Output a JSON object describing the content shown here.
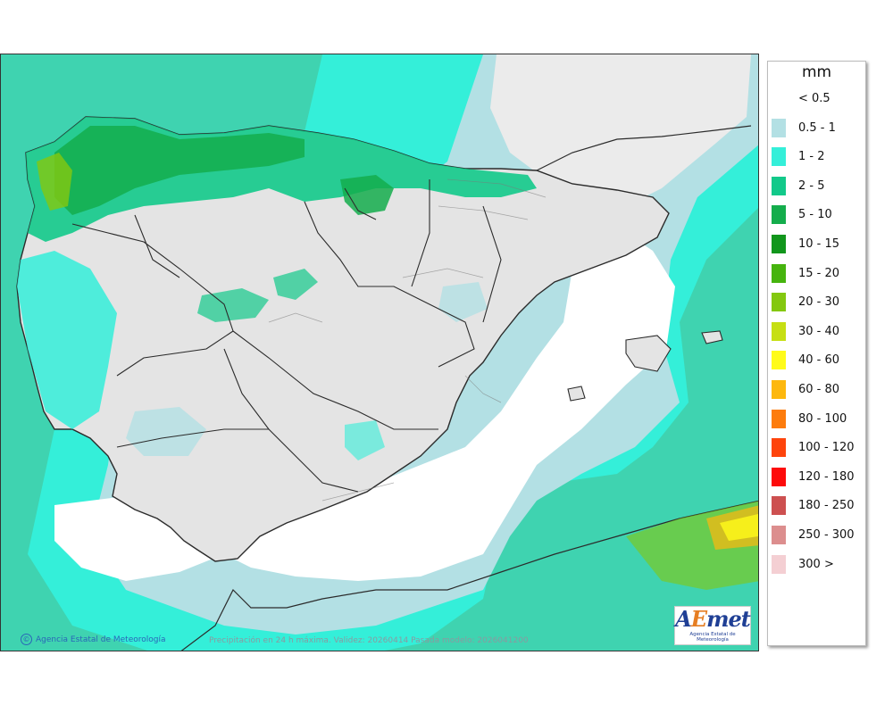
{
  "map": {
    "footer_text": "Precipitación en 24 h máxima. Validez: 20260414 Pasada modelo: 2026041200",
    "credit": "Agencia Estatal de Meteorología",
    "logo": {
      "wordmark_a": "A",
      "wordmark_e": "E",
      "wordmark_rest": "met",
      "subtitle": "Agencia Estatal de Meteorología"
    },
    "colors": {
      "sea_low": "#3fd3b0",
      "land_dry": "#e3e3e3",
      "dry_white": "#ffffff"
    }
  },
  "legend": {
    "unit": "mm",
    "items": [
      {
        "label": "< 0.5",
        "color": "#ffffff"
      },
      {
        "label": "0.5 - 1",
        "color": "#b3e0e4"
      },
      {
        "label": "1 - 2",
        "color": "#34efd9"
      },
      {
        "label": "2 - 5",
        "color": "#12c98a"
      },
      {
        "label": "5 - 10",
        "color": "#14ad4c"
      },
      {
        "label": "10 - 15",
        "color": "#11961c"
      },
      {
        "label": "15 - 20",
        "color": "#46b40e"
      },
      {
        "label": "20 - 30",
        "color": "#84c80f"
      },
      {
        "label": "30 - 40",
        "color": "#c6df13"
      },
      {
        "label": "40 - 60",
        "color": "#fffb1a"
      },
      {
        "label": "60 - 80",
        "color": "#fdb80e"
      },
      {
        "label": "80 - 100",
        "color": "#fd7c0d"
      },
      {
        "label": "100 - 120",
        "color": "#fe440c"
      },
      {
        "label": "120 - 180",
        "color": "#fd0b0b"
      },
      {
        "label": "180 - 250",
        "color": "#cd5050"
      },
      {
        "label": "250 - 300",
        "color": "#dc8e8e"
      },
      {
        "label": "300 >",
        "color": "#f4cfd3"
      }
    ]
  }
}
